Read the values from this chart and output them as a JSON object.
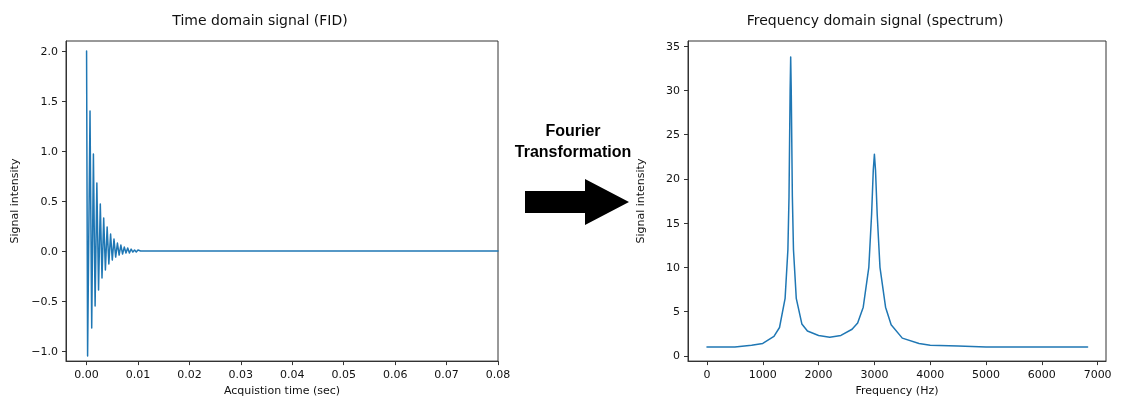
{
  "chart_data": [
    {
      "type": "line",
      "title": "Time domain signal (FID)",
      "xlabel": "Acquistion time (sec)",
      "ylabel": "Signal intensity",
      "grid": false,
      "marker": "none",
      "line_style": "solid",
      "xlim": [
        -0.004,
        0.08
      ],
      "ylim": [
        -1.1,
        2.1
      ],
      "xticks": [
        {
          "value": 0,
          "label": "0.00"
        },
        {
          "value": 0.01,
          "label": "0.01"
        },
        {
          "value": 0.02,
          "label": "0.02"
        },
        {
          "value": 0.03,
          "label": "0.03"
        },
        {
          "value": 0.04,
          "label": "0.04"
        },
        {
          "value": 0.05,
          "label": "0.05"
        },
        {
          "value": 0.06,
          "label": "0.06"
        },
        {
          "value": 0.07,
          "label": "0.07"
        },
        {
          "value": 0.08,
          "label": "0.08"
        }
      ],
      "yticks": [
        {
          "value": -1,
          "label": "−1.0"
        },
        {
          "value": -0.5,
          "label": "−0.5"
        },
        {
          "value": 0,
          "label": "0.0"
        },
        {
          "value": 0.5,
          "label": "0.5"
        },
        {
          "value": 1,
          "label": "1.0"
        },
        {
          "value": 1.5,
          "label": "1.5"
        },
        {
          "value": 2,
          "label": "2.0"
        }
      ],
      "series": [
        {
          "color": "#1f77b4",
          "x": [
            0,
            0.0002,
            0.00067,
            0.001,
            0.00133,
            0.00166,
            0.002,
            0.00233,
            0.00267,
            0.003,
            0.00333,
            0.00366,
            0.004,
            0.00433,
            0.00467,
            0.005,
            0.00533,
            0.00566,
            0.006,
            0.00633,
            0.00667,
            0.007,
            0.00733,
            0.00766,
            0.008,
            0.00833,
            0.00867,
            0.009,
            0.00933,
            0.00966,
            0.01,
            0.0105,
            0.011,
            0.012,
            0.015,
            0.08
          ],
          "values": [
            2.0,
            -1.05,
            1.4,
            -0.77,
            0.97,
            -0.55,
            0.68,
            -0.39,
            0.47,
            -0.27,
            0.33,
            -0.19,
            0.24,
            -0.13,
            0.17,
            -0.09,
            0.12,
            -0.06,
            0.08,
            -0.04,
            0.06,
            -0.03,
            0.04,
            -0.02,
            0.03,
            -0.02,
            0.02,
            -0.01,
            0.01,
            -0.01,
            0.01,
            0,
            0,
            0,
            0,
            0
          ]
        }
      ]
    },
    {
      "type": "other",
      "annotations": [
        "Fourier Transformation"
      ]
    },
    {
      "type": "line",
      "title": "Frequency domain signal (spectrum)",
      "xlabel": "Frequency (Hz)",
      "ylabel": "Signal intensity",
      "grid": false,
      "marker": "none",
      "line_style": "solid",
      "xlim": [
        -340,
        7150
      ],
      "ylim": [
        -0.6,
        35.6
      ],
      "xticks": [
        0,
        1000,
        2000,
        3000,
        4000,
        5000,
        6000,
        7000
      ],
      "yticks": [
        0,
        5,
        10,
        15,
        20,
        25,
        30,
        35
      ],
      "series": [
        {
          "color": "#1f77b4",
          "x": [
            0,
            500,
            800,
            1000,
            1200,
            1300,
            1400,
            1450,
            1470,
            1490,
            1500,
            1510,
            1530,
            1550,
            1600,
            1700,
            1800,
            2000,
            2200,
            2400,
            2600,
            2700,
            2800,
            2900,
            2950,
            2980,
            3000,
            3020,
            3050,
            3100,
            3200,
            3300,
            3500,
            3800,
            4000,
            4500,
            5000,
            6000,
            6820
          ],
          "values": [
            1.0,
            1.0,
            1.2,
            1.4,
            2.2,
            3.2,
            6.5,
            12,
            18,
            30,
            33.8,
            30,
            18,
            12,
            6.5,
            3.6,
            2.8,
            2.3,
            2.1,
            2.3,
            3.0,
            3.7,
            5.5,
            10,
            16,
            21,
            22.8,
            21,
            16,
            10,
            5.5,
            3.5,
            2.0,
            1.4,
            1.2,
            1.1,
            1.0,
            1.0,
            1.0
          ]
        }
      ]
    }
  ]
}
